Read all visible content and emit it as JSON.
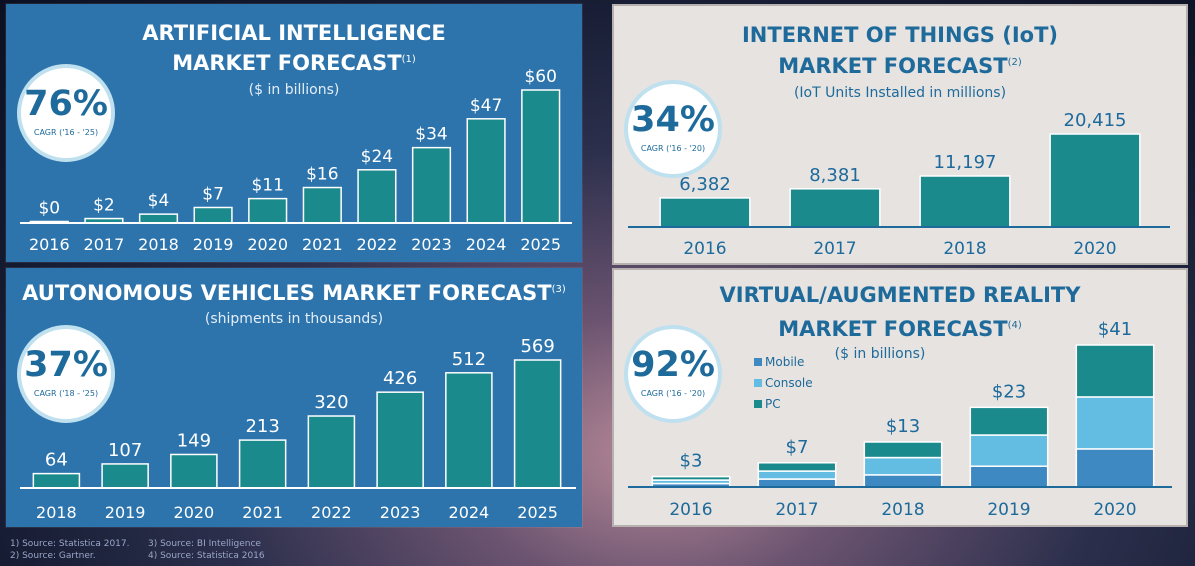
{
  "panels": {
    "ai": {
      "title_line1": "ARTIFICIAL INTELLIGENCE",
      "title_line2": "MARKET FORECAST",
      "title_note": "(1)",
      "subtitle": "($ in billions)",
      "cagr_value": "76%",
      "cagr_label": "CAGR ('16 - '25)"
    },
    "iot": {
      "title_line1": "INTERNET OF THINGS (IoT)",
      "title_line2": "MARKET FORECAST",
      "title_note": "(2)",
      "subtitle": "(IoT Units Installed in millions)",
      "cagr_value": "34%",
      "cagr_label": "CAGR ('16 - '20)"
    },
    "av": {
      "title": "AUTONOMOUS VEHICLES MARKET FORECAST",
      "title_note": "(3)",
      "subtitle": "(shipments in thousands)",
      "cagr_value": "37%",
      "cagr_label": "CAGR ('18 - '25)"
    },
    "vr": {
      "title_line1": "VIRTUAL/AUGMENTED REALITY",
      "title_line2": "MARKET FORECAST",
      "title_note": "(4)",
      "subtitle": "($ in billions)",
      "cagr_value": "92%",
      "cagr_label": "CAGR ('16 - '20)"
    }
  },
  "footnotes": {
    "n1": "1)   Source: Statistica 2017.",
    "n2": "2)   Source: Gartner.",
    "n3": "3)   Source: BI Intelligence",
    "n4": "4)   Source: Statistica 2016"
  },
  "colors": {
    "bar": "#1b8a8c",
    "bar_stroke": "#ffffff",
    "mobile": "#3f89c2",
    "console": "#63bde3",
    "pc": "#1b8a8c"
  },
  "chart_data": [
    {
      "id": "ai",
      "type": "bar",
      "title": "ARTIFICIAL INTELLIGENCE MARKET FORECAST",
      "subtitle": "($ in billions)",
      "categories": [
        "2016",
        "2017",
        "2018",
        "2019",
        "2020",
        "2021",
        "2022",
        "2023",
        "2024",
        "2025"
      ],
      "values": [
        0,
        2,
        4,
        7,
        11,
        16,
        24,
        34,
        47,
        60
      ],
      "value_labels": [
        "$0",
        "$2",
        "$4",
        "$7",
        "$11",
        "$16",
        "$24",
        "$34",
        "$47",
        "$60"
      ],
      "ylim": [
        0,
        60
      ],
      "grid": false
    },
    {
      "id": "iot",
      "type": "bar",
      "title": "INTERNET OF THINGS (IoT) MARKET FORECAST",
      "subtitle": "(IoT Units Installed in millions)",
      "categories": [
        "2016",
        "2017",
        "2018",
        "2020"
      ],
      "values": [
        6382,
        8381,
        11197,
        20415
      ],
      "value_labels": [
        "6,382",
        "8,381",
        "11,197",
        "20,415"
      ],
      "ylim": [
        0,
        20415
      ],
      "grid": false
    },
    {
      "id": "av",
      "type": "bar",
      "title": "AUTONOMOUS VEHICLES MARKET FORECAST",
      "subtitle": "(shipments in thousands)",
      "categories": [
        "2018",
        "2019",
        "2020",
        "2021",
        "2022",
        "2023",
        "2024",
        "2025"
      ],
      "values": [
        64,
        107,
        149,
        213,
        320,
        426,
        512,
        569
      ],
      "value_labels": [
        "64",
        "107",
        "149",
        "213",
        "320",
        "426",
        "512",
        "569"
      ],
      "ylim": [
        0,
        569
      ],
      "grid": false
    },
    {
      "id": "vr",
      "type": "bar",
      "stacked": true,
      "title": "VIRTUAL/AUGMENTED REALITY MARKET FORECAST",
      "subtitle": "($ in billions)",
      "categories": [
        "2016",
        "2017",
        "2018",
        "2019",
        "2020"
      ],
      "totals": [
        3,
        7,
        13,
        23,
        41
      ],
      "total_labels": [
        "$3",
        "$7",
        "$13",
        "$23",
        "$41"
      ],
      "series": [
        {
          "name": "Mobile",
          "values": [
            1,
            2.3,
            3.5,
            6,
            11
          ]
        },
        {
          "name": "Console",
          "values": [
            1,
            2.3,
            5,
            9,
            15
          ]
        },
        {
          "name": "PC",
          "values": [
            1,
            2.4,
            4.5,
            8,
            15
          ]
        }
      ],
      "legend": "top-left",
      "ylim": [
        0,
        41
      ],
      "grid": false
    }
  ]
}
